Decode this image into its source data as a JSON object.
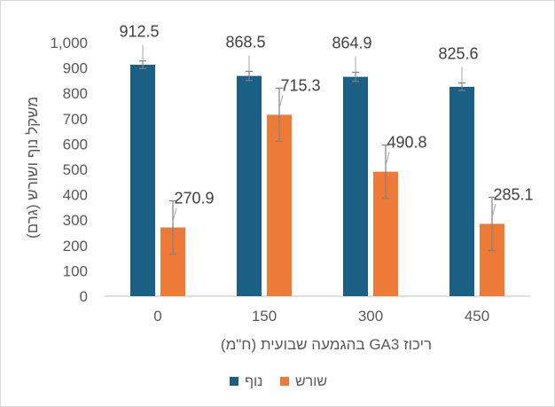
{
  "chart_data": {
    "type": "bar",
    "categories": [
      "0",
      "150",
      "300",
      "450"
    ],
    "series": [
      {
        "name": "נוף",
        "color": "#1a5f84",
        "values": [
          912.5,
          868.5,
          864.9,
          825.6
        ],
        "errors": [
          15,
          18,
          18,
          15
        ]
      },
      {
        "name": "שורש",
        "color": "#ed7a36",
        "values": [
          270.9,
          715.3,
          490.8,
          285.1
        ],
        "errors": [
          105,
          105,
          105,
          105
        ]
      }
    ],
    "data_labels": [
      [
        "912.5",
        "868.5",
        "864.9",
        "825.6"
      ],
      [
        "270.9",
        "715.3",
        "490.8",
        "285.1"
      ]
    ],
    "yticks": [
      "0",
      "100",
      "200",
      "300",
      "400",
      "500",
      "600",
      "700",
      "800",
      "900",
      "1,000"
    ],
    "ylim": [
      0,
      1000
    ],
    "xlabel": "ריכוז GA3 בהגמעה שבועית (ח\"מ)",
    "ylabel": "משקל נוף ושורש (גרם)",
    "grid": false,
    "legend_position": "bottom"
  }
}
